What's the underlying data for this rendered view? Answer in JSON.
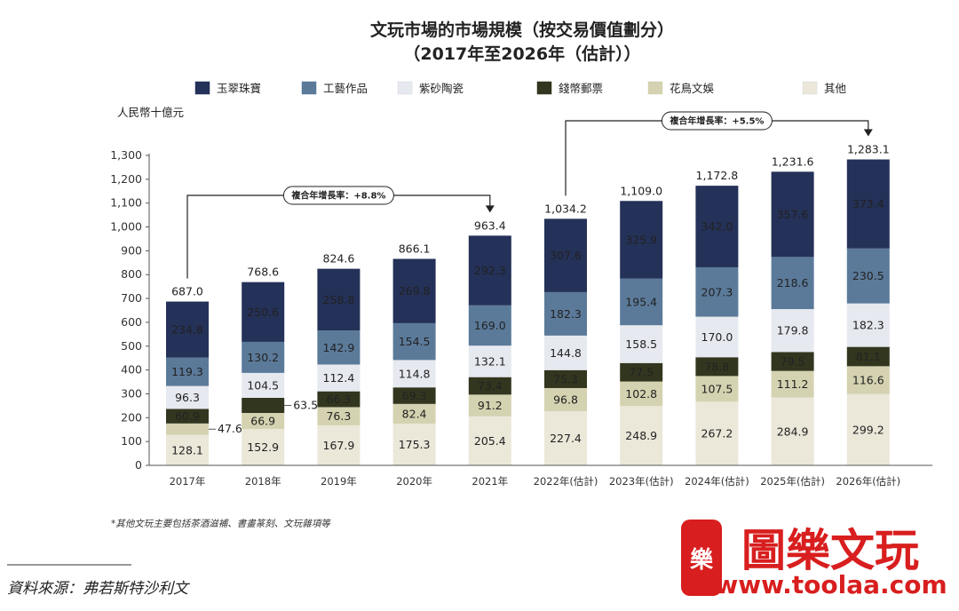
{
  "chart_data": {
    "type": "bar",
    "stacked": true,
    "title": "文玩市場的市場規模（按交易價值劃分）",
    "subtitle": "（2017年至2026年（估計））",
    "ylabel": "人民幣十億元",
    "ylim": [
      0,
      1300
    ],
    "yticks": [
      0,
      100,
      200,
      300,
      400,
      500,
      600,
      700,
      800,
      900,
      1000,
      1100,
      1200,
      1300
    ],
    "ytick_labels": [
      "0",
      "100",
      "200",
      "300",
      "400",
      "500",
      "600",
      "700",
      "800",
      "900",
      "1,000",
      "1,100",
      "1,200",
      "1,300"
    ],
    "grid": false,
    "legend_position": "top",
    "categories": [
      "2017年",
      "2018年",
      "2019年",
      "2020年",
      "2021年",
      "2022年(估計)",
      "2023年(估計)",
      "2024年(估計)",
      "2025年(估計)",
      "2026年(估計)"
    ],
    "series": [
      {
        "name": "其他",
        "color": "#ebe7d9",
        "values": [
          128.1,
          152.9,
          167.9,
          175.3,
          205.4,
          227.4,
          248.9,
          267.2,
          284.9,
          299.2
        ],
        "labels": [
          "128.1",
          "152.9",
          "167.9",
          "175.3",
          "205.4",
          "227.4",
          "248.9",
          "267.2",
          "284.9",
          "299.2"
        ]
      },
      {
        "name": "花鳥文娛",
        "color": "#d4d2b0",
        "values": [
          47.6,
          66.9,
          76.3,
          82.4,
          91.2,
          96.8,
          102.8,
          107.5,
          111.2,
          116.6
        ],
        "labels": [
          "47.6",
          "66.9",
          "76.3",
          "82.4",
          "91.2",
          "96.8",
          "102.8",
          "107.5",
          "111.2",
          "116.6"
        ]
      },
      {
        "name": "錢幣郵票",
        "color": "#33361f",
        "values": [
          60.9,
          63.5,
          66.3,
          69.3,
          73.4,
          75.3,
          77.5,
          78.8,
          79.5,
          81.1
        ],
        "labels": [
          "60.9",
          "63.5",
          "66.3",
          "69.3",
          "73.4",
          "75.3",
          "77.5",
          "78.8",
          "79.5",
          "81.1"
        ]
      },
      {
        "name": "紫砂陶瓷",
        "color": "#e6e9ef",
        "values": [
          96.3,
          104.5,
          112.4,
          114.8,
          132.1,
          144.8,
          158.5,
          170.0,
          179.8,
          182.3
        ],
        "labels": [
          "96.3",
          "104.5",
          "112.4",
          "114.8",
          "132.1",
          "144.8",
          "158.5",
          "170.0",
          "179.8",
          "182.3"
        ]
      },
      {
        "name": "工藝作品",
        "color": "#5b7a9a",
        "values": [
          119.3,
          130.2,
          142.9,
          154.5,
          169.0,
          182.3,
          195.4,
          207.3,
          218.6,
          230.5
        ],
        "labels": [
          "119.3",
          "130.2",
          "142.9",
          "154.5",
          "169.0",
          "182.3",
          "195.4",
          "207.3",
          "218.6",
          "230.5"
        ]
      },
      {
        "name": "玉翠珠寶",
        "color": "#243158",
        "values": [
          234.8,
          250.6,
          258.8,
          269.8,
          292.3,
          307.6,
          325.9,
          342.0,
          357.6,
          373.4
        ],
        "labels": [
          "234.8",
          "250.6",
          "258.8",
          "269.8",
          "292.3",
          "307.6",
          "325.9",
          "342.0",
          "357.6",
          "373.4"
        ]
      }
    ],
    "totals": [
      687.0,
      768.6,
      824.6,
      866.1,
      963.4,
      1034.2,
      1109.0,
      1172.8,
      1231.6,
      1283.1
    ],
    "total_labels": [
      "687.0",
      "768.6",
      "824.6",
      "866.1",
      "963.4",
      "1,034.2",
      "1,109.0",
      "1,172.8",
      "1,231.6",
      "1,283.1"
    ],
    "legend_order": [
      "玉翠珠寶",
      "工藝作品",
      "紫砂陶瓷",
      "錢幣郵票",
      "花鳥文娛",
      "其他"
    ],
    "annotations": [
      {
        "text": "複合年增長率：+8.8%",
        "from_index": 0,
        "to_index": 4
      },
      {
        "text": "複合年增長率：+5.5%",
        "from_index": 5,
        "to_index": 9
      }
    ],
    "footnote": "*其他文玩主要包括茶酒滋補、書畫篆刻、文玩雜項等",
    "source": "資料來源：弗若斯特沙利文"
  },
  "watermark": {
    "seal_text": "樂",
    "brand_text": "圖樂文玩",
    "url": "www.toolaa.com",
    "color": "#d81e1e"
  }
}
